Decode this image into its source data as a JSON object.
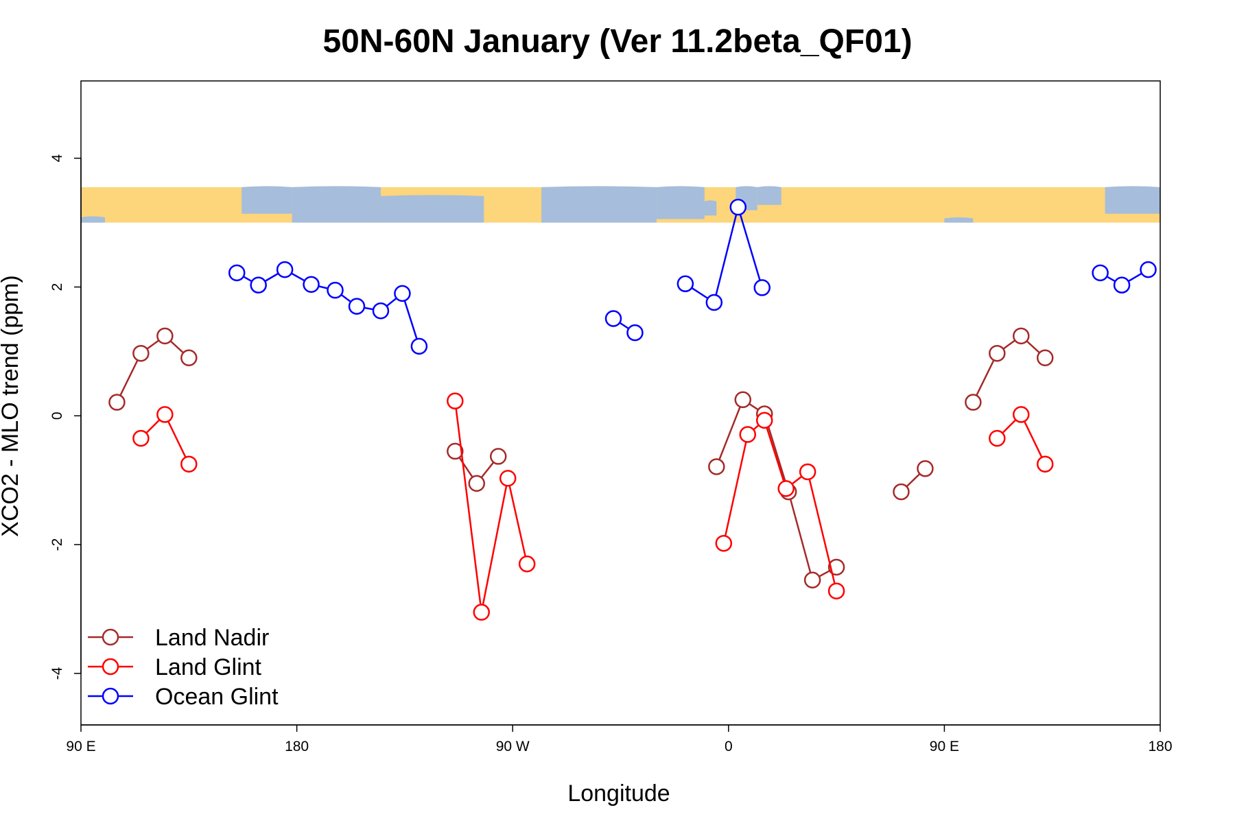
{
  "colors": {
    "land_nadir": "#a52a2a",
    "land_glint": "#ff0000",
    "ocean_glint": "#0000ff",
    "map_land": "#fdd57a",
    "map_ocean": "#a6bddb"
  },
  "chart_data": {
    "type": "line",
    "title": "50N-60N January (Ver 11.2beta_QF01)",
    "xlabel": "Longitude",
    "ylabel": "XCO2 - MLO trend (ppm)",
    "xlim": [
      90,
      540
    ],
    "ylim": [
      -4.8,
      5.2
    ],
    "x_ticks": [
      {
        "value": 90,
        "label": "90 E"
      },
      {
        "value": 180,
        "label": "180"
      },
      {
        "value": 270,
        "label": "90 W"
      },
      {
        "value": 360,
        "label": "0"
      },
      {
        "value": 450,
        "label": "90 E"
      },
      {
        "value": 540,
        "label": "180"
      }
    ],
    "y_ticks": [
      {
        "value": -4,
        "label": "-4"
      },
      {
        "value": -2,
        "label": "-2"
      },
      {
        "value": 0,
        "label": "0"
      },
      {
        "value": 2,
        "label": "2"
      },
      {
        "value": 4,
        "label": "4"
      }
    ],
    "map_strip": {
      "y_min": 3.0,
      "y_max": 3.55
    },
    "legend_position": "bottom-left",
    "series": [
      {
        "name": "Land Nadir",
        "color_key": "land_nadir",
        "segments": [
          [
            [
              105,
              0.21
            ],
            [
              115,
              0.97
            ],
            [
              125,
              1.24
            ],
            [
              135,
              0.9
            ]
          ],
          [
            [
              246,
              -0.55
            ],
            [
              255,
              -1.05
            ],
            [
              264,
              -0.63
            ]
          ],
          [
            [
              355,
              -0.79
            ],
            [
              366,
              0.25
            ],
            [
              375,
              0.03
            ],
            [
              385,
              -1.18
            ],
            [
              395,
              -2.55
            ],
            [
              405,
              -2.35
            ]
          ],
          [
            [
              432,
              -1.18
            ],
            [
              442,
              -0.82
            ]
          ],
          [
            [
              462,
              0.21
            ],
            [
              472,
              0.97
            ],
            [
              482,
              1.24
            ],
            [
              492,
              0.9
            ]
          ]
        ]
      },
      {
        "name": "Land Glint",
        "color_key": "land_glint",
        "segments": [
          [
            [
              115,
              -0.35
            ],
            [
              125,
              0.02
            ],
            [
              135,
              -0.75
            ]
          ],
          [
            [
              246,
              0.23
            ],
            [
              257,
              -3.05
            ],
            [
              268,
              -0.97
            ],
            [
              276,
              -2.3
            ]
          ],
          [
            [
              358,
              -1.98
            ],
            [
              368,
              -0.29
            ],
            [
              375,
              -0.07
            ],
            [
              384,
              -1.13
            ],
            [
              393,
              -0.87
            ],
            [
              405,
              -2.72
            ]
          ],
          [
            [
              472,
              -0.35
            ],
            [
              482,
              0.02
            ],
            [
              492,
              -0.75
            ]
          ]
        ]
      },
      {
        "name": "Ocean Glint",
        "color_key": "ocean_glint",
        "segments": [
          [
            [
              155,
              2.22
            ],
            [
              164,
              2.03
            ],
            [
              175,
              2.27
            ],
            [
              186,
              2.04
            ],
            [
              196,
              1.95
            ],
            [
              205,
              1.7
            ],
            [
              215,
              1.63
            ],
            [
              224,
              1.9
            ],
            [
              231,
              1.08
            ]
          ],
          [
            [
              312,
              1.51
            ],
            [
              321,
              1.29
            ]
          ],
          [
            [
              342,
              2.05
            ],
            [
              354,
              1.76
            ],
            [
              364,
              3.24
            ],
            [
              374,
              1.99
            ]
          ],
          [
            [
              515,
              2.22
            ],
            [
              524,
              2.03
            ],
            [
              535,
              2.27
            ]
          ]
        ]
      }
    ]
  }
}
